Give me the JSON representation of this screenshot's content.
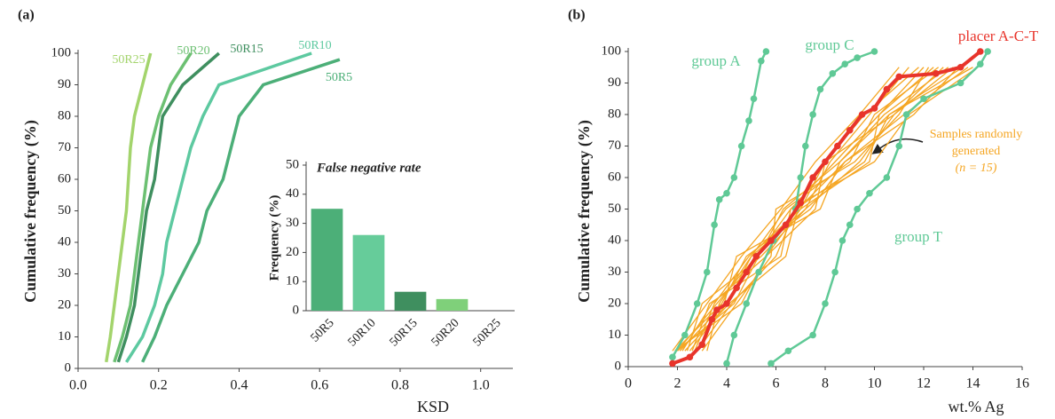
{
  "chart_data": [
    {
      "type": "line",
      "panel_label": "(a)",
      "xlabel": "KSD",
      "ylabel": "Cumulative frequency (%)",
      "xlim": [
        0,
        1.08
      ],
      "ylim": [
        0,
        100
      ],
      "xticks": [
        {
          "value": 0,
          "label": "0.0"
        },
        {
          "value": 0.2,
          "label": "0.2"
        },
        {
          "value": 0.4,
          "label": "0.4"
        },
        {
          "value": 0.6,
          "label": "0.6"
        },
        {
          "value": 0.8,
          "label": "0.8"
        },
        {
          "value": 1,
          "label": "1.0"
        }
      ],
      "yticks": [
        0,
        10,
        20,
        30,
        40,
        50,
        60,
        70,
        80,
        90,
        100
      ],
      "series": [
        {
          "name": "50R25",
          "color": "#a3d46c",
          "x": [
            0.07,
            0.08,
            0.09,
            0.1,
            0.11,
            0.12,
            0.125,
            0.13,
            0.14,
            0.16,
            0.18
          ],
          "values": [
            2,
            10,
            20,
            30,
            40,
            50,
            60,
            70,
            80,
            90,
            100
          ]
        },
        {
          "name": "50R20",
          "color": "#6cc072",
          "x": [
            0.09,
            0.11,
            0.13,
            0.14,
            0.15,
            0.16,
            0.17,
            0.18,
            0.2,
            0.23,
            0.28
          ],
          "values": [
            2,
            10,
            20,
            30,
            40,
            50,
            60,
            70,
            80,
            90,
            100
          ]
        },
        {
          "name": "50R15",
          "color": "#3f8f5f",
          "x": [
            0.1,
            0.12,
            0.14,
            0.15,
            0.16,
            0.17,
            0.19,
            0.2,
            0.21,
            0.26,
            0.35
          ],
          "values": [
            2,
            10,
            20,
            30,
            40,
            50,
            60,
            70,
            80,
            90,
            100
          ]
        },
        {
          "name": "50R10",
          "color": "#5dc9a0",
          "x": [
            0.12,
            0.16,
            0.19,
            0.21,
            0.22,
            0.24,
            0.26,
            0.28,
            0.31,
            0.35,
            0.58
          ],
          "values": [
            2,
            10,
            20,
            30,
            40,
            50,
            60,
            70,
            80,
            90,
            100
          ]
        },
        {
          "name": "50R5",
          "color": "#4caf78",
          "x": [
            0.16,
            0.19,
            0.22,
            0.26,
            0.3,
            0.32,
            0.36,
            0.38,
            0.4,
            0.46,
            0.65
          ],
          "values": [
            2,
            10,
            20,
            30,
            40,
            50,
            60,
            70,
            80,
            90,
            98
          ]
        }
      ]
    },
    {
      "type": "bar",
      "title": "False negative rate",
      "ylabel": "Frequency (%)",
      "categories": [
        "50R5",
        "50R10",
        "50R15",
        "50R20",
        "50R25"
      ],
      "values": [
        35,
        26,
        6.5,
        4,
        0
      ],
      "colors": [
        "#4caf78",
        "#66cc9a",
        "#3f8f5f",
        "#7fd07a",
        "#a3d46c"
      ],
      "ylim": [
        0,
        50
      ],
      "yticks": [
        0,
        10,
        20,
        30,
        40,
        50
      ]
    },
    {
      "type": "line",
      "panel_label": "(b)",
      "xlabel": "wt.% Ag",
      "ylabel": "Cumulative frequency (%)",
      "xlim": [
        0,
        16
      ],
      "ylim": [
        0,
        100
      ],
      "xticks": [
        0,
        2,
        4,
        6,
        8,
        10,
        12,
        14,
        16
      ],
      "yticks": [
        0,
        10,
        20,
        30,
        40,
        50,
        60,
        70,
        80,
        90,
        100
      ],
      "annotation": [
        "Samples randomly",
        "generated",
        "(n = 15)"
      ],
      "series": [
        {
          "color": "#f5a623",
          "x": [
            1.8,
            3.2,
            4.6,
            6.2,
            7.6,
            9.4,
            11.0
          ],
          "values": [
            5,
            20,
            35,
            50,
            65,
            80,
            95
          ]
        },
        {
          "color": "#f5a623",
          "x": [
            2.0,
            3.6,
            5.2,
            6.6,
            8.4,
            10.2,
            12.0
          ],
          "values": [
            5,
            20,
            35,
            50,
            65,
            80,
            95
          ]
        },
        {
          "color": "#f5a623",
          "x": [
            2.2,
            3.4,
            5.6,
            7.0,
            8.0,
            10.8,
            13.2
          ],
          "values": [
            5,
            20,
            35,
            50,
            65,
            80,
            95
          ]
        },
        {
          "color": "#f5a623",
          "x": [
            2.5,
            4.0,
            5.0,
            6.4,
            9.0,
            10.0,
            12.6
          ],
          "values": [
            5,
            20,
            35,
            50,
            65,
            80,
            95
          ]
        },
        {
          "color": "#f5a623",
          "x": [
            1.9,
            3.8,
            4.8,
            7.4,
            8.8,
            11.2,
            13.8
          ],
          "values": [
            5,
            20,
            35,
            50,
            65,
            80,
            95
          ]
        },
        {
          "color": "#f5a623",
          "x": [
            2.8,
            4.2,
            6.0,
            6.8,
            9.6,
            10.6,
            14.0
          ],
          "values": [
            5,
            20,
            35,
            50,
            65,
            80,
            95
          ]
        },
        {
          "color": "#f5a623",
          "x": [
            2.4,
            3.0,
            5.4,
            7.2,
            8.2,
            9.8,
            11.4
          ],
          "values": [
            5,
            20,
            35,
            50,
            65,
            80,
            95
          ]
        },
        {
          "color": "#f5a623",
          "x": [
            3.0,
            4.4,
            5.8,
            6.0,
            9.2,
            11.0,
            12.2
          ],
          "values": [
            5,
            20,
            35,
            50,
            65,
            80,
            95
          ]
        },
        {
          "color": "#f5a623",
          "x": [
            2.1,
            3.9,
            4.4,
            7.8,
            8.6,
            10.4,
            13.0
          ],
          "values": [
            5,
            20,
            35,
            50,
            65,
            80,
            95
          ]
        },
        {
          "color": "#f5a623",
          "x": [
            2.6,
            3.3,
            6.2,
            6.6,
            10.0,
            11.4,
            14.2
          ],
          "values": [
            5,
            20,
            35,
            50,
            65,
            80,
            95
          ]
        },
        {
          "color": "#f5a623",
          "x": [
            1.9,
            4.6,
            5.6,
            7.6,
            8.0,
            9.6,
            11.8
          ],
          "values": [
            5,
            20,
            35,
            50,
            65,
            80,
            95
          ]
        },
        {
          "color": "#f5a623",
          "x": [
            3.2,
            3.7,
            5.0,
            7.2,
            9.4,
            10.8,
            12.8
          ],
          "values": [
            5,
            20,
            35,
            50,
            65,
            80,
            95
          ]
        },
        {
          "color": "#f5a623",
          "x": [
            2.3,
            4.1,
            6.4,
            6.9,
            8.8,
            11.6,
            13.4
          ],
          "values": [
            5,
            20,
            35,
            50,
            65,
            80,
            95
          ]
        },
        {
          "color": "#f5a623",
          "x": [
            2.7,
            3.5,
            4.9,
            7.0,
            9.8,
            10.2,
            12.4
          ],
          "values": [
            5,
            20,
            35,
            50,
            65,
            80,
            95
          ]
        },
        {
          "color": "#f5a623",
          "x": [
            2.0,
            4.3,
            5.3,
            6.3,
            8.6,
            10.6,
            13.6
          ],
          "values": [
            5,
            20,
            35,
            50,
            65,
            80,
            95
          ]
        },
        {
          "name": "group A",
          "color": "#5fc996",
          "markers": true,
          "x": [
            1.8,
            2.3,
            2.8,
            3.2,
            3.5,
            3.7,
            4.0,
            4.3,
            4.6,
            4.9,
            5.1,
            5.4,
            5.6
          ],
          "values": [
            3,
            10,
            20,
            30,
            45,
            53,
            55,
            60,
            70,
            78,
            85,
            97,
            100
          ]
        },
        {
          "name": "group C",
          "color": "#5fc996",
          "markers": true,
          "x": [
            4.0,
            4.3,
            4.8,
            5.3,
            5.9,
            6.4,
            6.8,
            7.0,
            7.2,
            7.5,
            7.8,
            8.3,
            8.8,
            9.3,
            10.0
          ],
          "values": [
            1,
            10,
            20,
            30,
            40,
            45,
            50,
            60,
            70,
            80,
            88,
            93,
            96,
            98,
            100
          ]
        },
        {
          "name": "group T",
          "color": "#5fc996",
          "markers": true,
          "x": [
            5.8,
            6.5,
            7.5,
            8.0,
            8.4,
            8.7,
            9.0,
            9.3,
            9.8,
            10.5,
            11.0,
            11.3,
            12.0,
            13.5,
            14.3,
            14.6
          ],
          "values": [
            1,
            5,
            10,
            20,
            30,
            40,
            45,
            50,
            55,
            60,
            70,
            80,
            85,
            90,
            96,
            100
          ]
        },
        {
          "name": "placer A-C-T",
          "color": "#e8342b",
          "markers": true,
          "x": [
            1.8,
            2.5,
            3.0,
            3.4,
            3.6,
            4.0,
            4.4,
            4.8,
            5.2,
            5.8,
            6.4,
            7.0,
            7.5,
            8.0,
            8.5,
            9.0,
            9.5,
            10.0,
            10.5,
            11.0,
            12.5,
            13.5,
            14.3
          ],
          "values": [
            1,
            3,
            7,
            15,
            18,
            20,
            25,
            30,
            35,
            40,
            45,
            52,
            60,
            65,
            70,
            75,
            80,
            82,
            88,
            92,
            93,
            95,
            100
          ]
        }
      ]
    }
  ]
}
